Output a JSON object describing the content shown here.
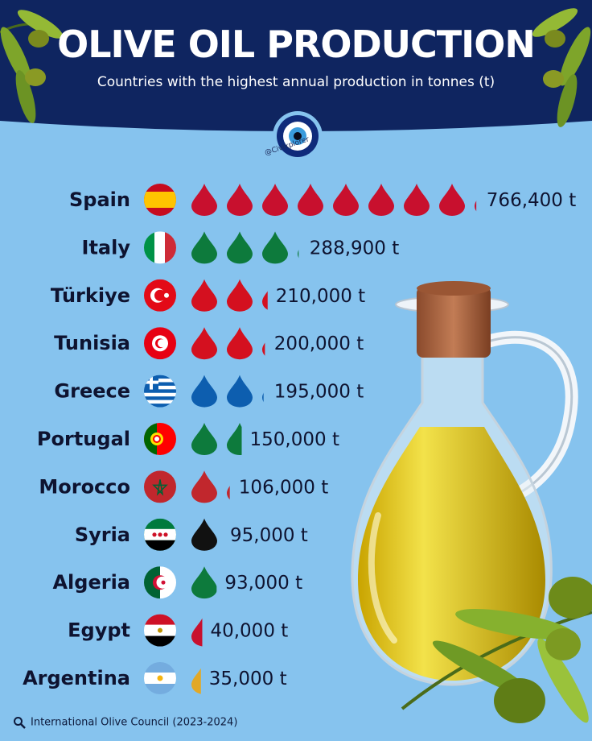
{
  "header": {
    "title": "OLIVE OIL PRODUCTION",
    "subtitle": "Countries with the highest annual production in tonnes (t)",
    "handle": "@Civixplorer"
  },
  "source": "International Olive Council (2023-2024)",
  "colors": {
    "header_bg": "#0f2560",
    "page_bg": "#86c3ee",
    "red_drop": "#c8102e",
    "green_drop": "#0d7a3c",
    "blue_drop": "#0d5eaf",
    "black_drop": "#111111",
    "yellow_drop": "#e2a826"
  },
  "chart_data": {
    "type": "bar",
    "title": "OLIVE OIL PRODUCTION",
    "subtitle": "Countries with the highest annual production in tonnes (t)",
    "unit": "t",
    "drop_unit_tonnes": 95000,
    "categories": [
      "Spain",
      "Italy",
      "Türkiye",
      "Tunisia",
      "Greece",
      "Portugal",
      "Morocco",
      "Syria",
      "Algeria",
      "Egypt",
      "Argentina"
    ],
    "values": [
      766400,
      288900,
      210000,
      200000,
      195000,
      150000,
      106000,
      95000,
      93000,
      40000,
      35000
    ],
    "value_labels": [
      "766,400 t",
      "288,900 t",
      "210,000 t",
      "200,000 t",
      "195,000 t",
      "150,000 t",
      "106,000 t",
      "95,000 t",
      "93,000 t",
      "40,000 t",
      "35,000 t"
    ],
    "drop_colors": [
      "#c8102e",
      "#0d7a3c",
      "#d4101f",
      "#d4101f",
      "#0d5eaf",
      "#0d7a3c",
      "#c1272d",
      "#111111",
      "#0d7a3c",
      "#c8102e",
      "#e2a826"
    ],
    "flags": [
      "spain-flag",
      "italy-flag",
      "turkiye-flag",
      "tunisia-flag",
      "greece-flag",
      "portugal-flag",
      "morocco-flag",
      "syria-flag",
      "algeria-flag",
      "egypt-flag",
      "argentina-flag"
    ]
  }
}
